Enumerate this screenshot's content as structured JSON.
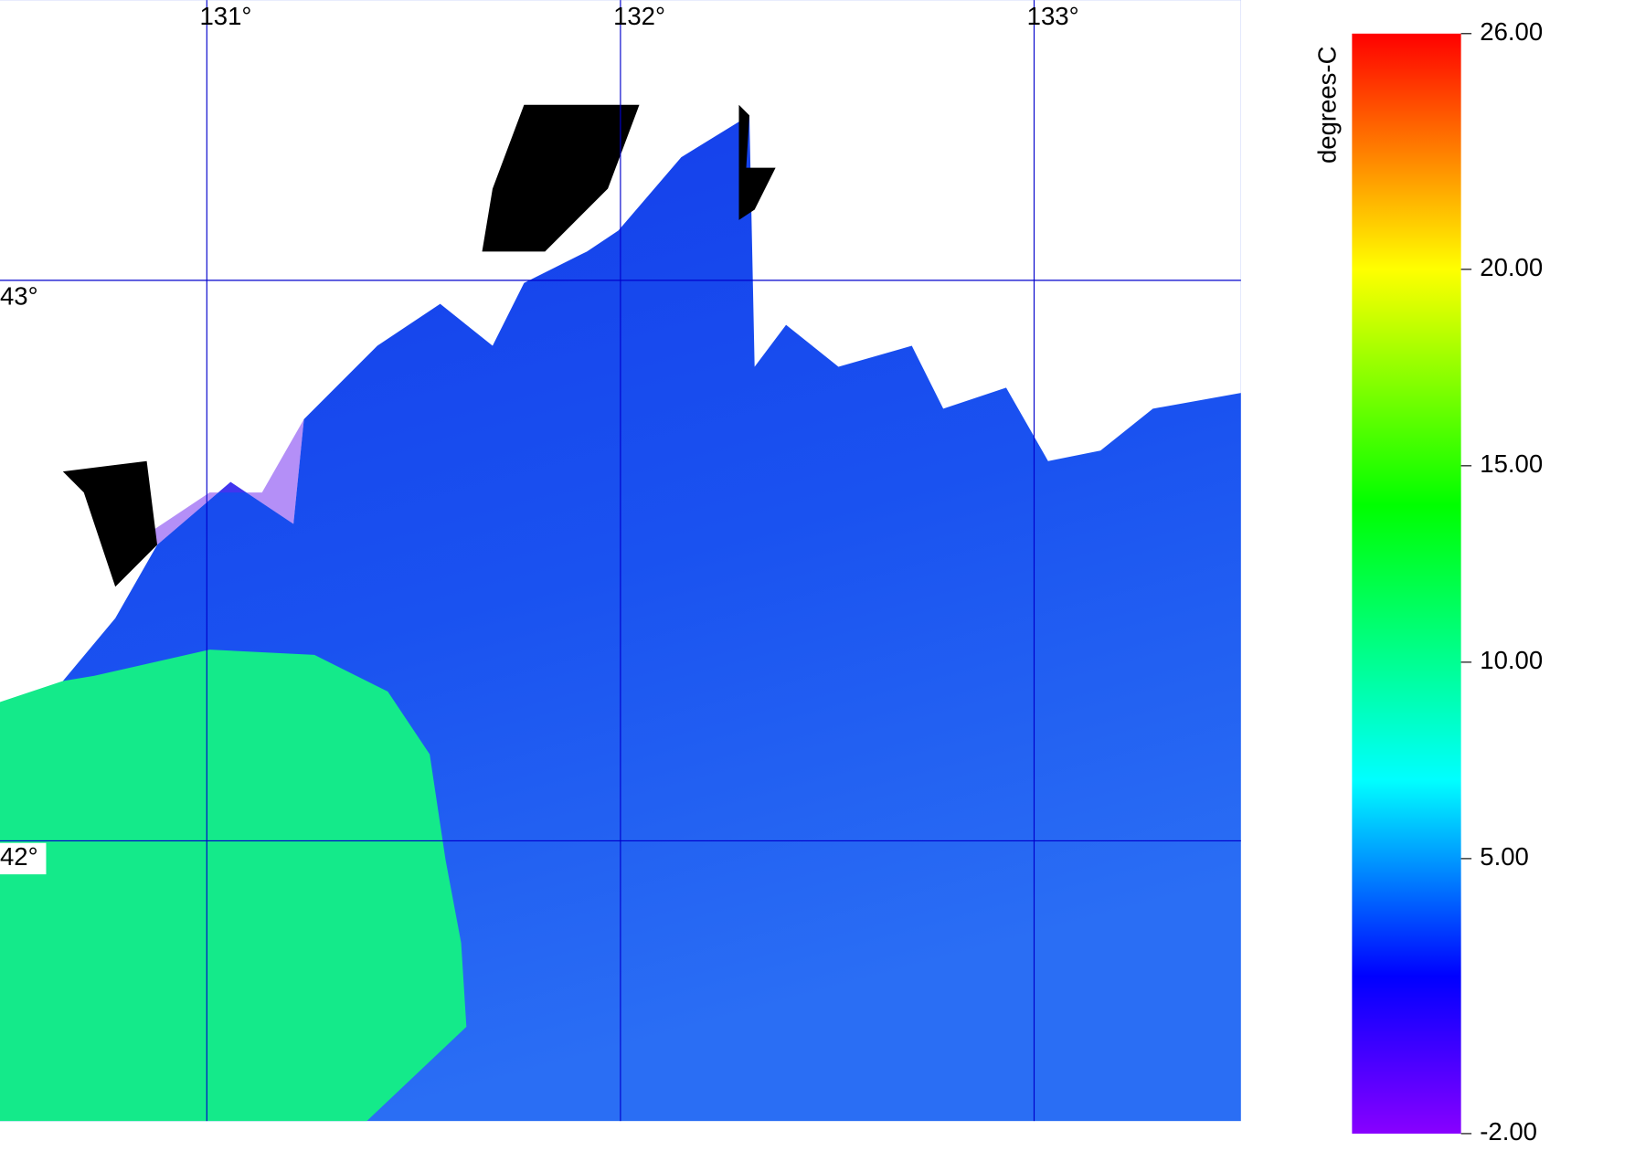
{
  "map": {
    "lonlim": [
      130.5,
      133.5
    ],
    "latlim": [
      41.5,
      43.5
    ],
    "lon_ticks": [
      {
        "value": 131,
        "label": "131°"
      },
      {
        "value": 132,
        "label": "132°"
      },
      {
        "value": 133,
        "label": "133°"
      }
    ],
    "lat_ticks": [
      {
        "value": 43,
        "label": "43°"
      },
      {
        "value": 42,
        "label": "42°"
      }
    ],
    "grid_color": "#0000cc"
  },
  "colorbar": {
    "label": "degrees-C",
    "lim": [
      -2,
      26
    ],
    "ticks": [
      {
        "value": 26,
        "label": "26.00"
      },
      {
        "value": 20,
        "label": "20.00"
      },
      {
        "value": 15,
        "label": "15.00"
      },
      {
        "value": 10,
        "label": "10.00"
      },
      {
        "value": 5,
        "label": "5.00"
      },
      {
        "value": -2,
        "label": "-2.00"
      }
    ],
    "colormap": [
      {
        "value": -2,
        "color": "#8800ff"
      },
      {
        "value": 2,
        "color": "#0000ff"
      },
      {
        "value": 7,
        "color": "#00ffff"
      },
      {
        "value": 14,
        "color": "#00ff00"
      },
      {
        "value": 20,
        "color": "#ffff00"
      },
      {
        "value": 26,
        "color": "#ff0000"
      }
    ]
  }
}
